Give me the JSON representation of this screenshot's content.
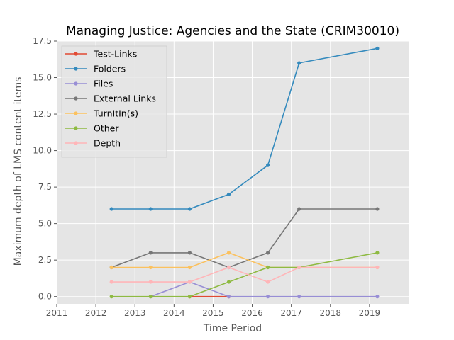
{
  "chart_data": {
    "type": "line",
    "title": "Managing Justice: Agencies and the State (CRIM30010)",
    "xlabel": "Time Period",
    "ylabel": "Maximum depth of LMS content items",
    "xlim": [
      2011,
      2020
    ],
    "ylim": [
      -0.5,
      17.5
    ],
    "xticks": [
      2011,
      2012,
      2013,
      2014,
      2015,
      2016,
      2017,
      2018,
      2019
    ],
    "yticks": [
      "0.0",
      "2.5",
      "5.0",
      "7.5",
      "10.0",
      "12.5",
      "15.0",
      "17.5"
    ],
    "grid": true,
    "legend_position": "top-left",
    "series": [
      {
        "name": "Test-Links",
        "color": "#E24A33",
        "x": [
          2014.4,
          2015.4
        ],
        "y": [
          0,
          0
        ]
      },
      {
        "name": "Folders",
        "color": "#348ABD",
        "x": [
          2012.4,
          2013.4,
          2014.4,
          2015.4,
          2016.4,
          2017.2,
          2019.2
        ],
        "y": [
          6,
          6,
          6,
          7,
          9,
          16,
          17
        ]
      },
      {
        "name": "Files",
        "color": "#988ED5",
        "x": [
          2013.4,
          2014.4,
          2015.4,
          2016.4,
          2017.2,
          2019.2
        ],
        "y": [
          0,
          1,
          0,
          0,
          0,
          0
        ]
      },
      {
        "name": "External Links",
        "color": "#777777",
        "x": [
          2012.4,
          2013.4,
          2014.4,
          2015.4,
          2016.4,
          2017.2,
          2019.2
        ],
        "y": [
          2,
          3,
          3,
          2,
          3,
          6,
          6
        ]
      },
      {
        "name": "TurnItIn(s)",
        "color": "#FBC15E",
        "x": [
          2012.4,
          2013.4,
          2014.4,
          2015.4,
          2016.4,
          2017.2,
          2019.2
        ],
        "y": [
          2,
          2,
          2,
          3,
          2,
          2,
          2
        ]
      },
      {
        "name": "Other",
        "color": "#8EBA42",
        "x": [
          2012.4,
          2013.4,
          2014.4,
          2015.4,
          2016.4,
          2017.2,
          2019.2
        ],
        "y": [
          0,
          0,
          0,
          1,
          2,
          2,
          3
        ]
      },
      {
        "name": "Depth",
        "color": "#FFB5B8",
        "x": [
          2012.4,
          2013.4,
          2014.4,
          2015.4,
          2016.4,
          2017.2,
          2019.2
        ],
        "y": [
          1,
          1,
          1,
          2,
          1,
          2,
          2
        ]
      }
    ]
  }
}
